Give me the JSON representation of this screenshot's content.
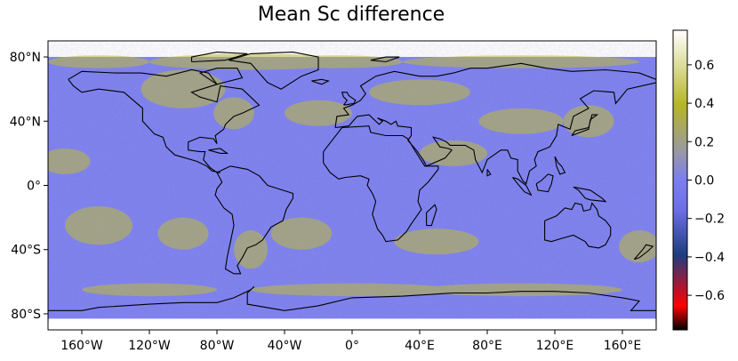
{
  "title": "Mean Sc difference",
  "map": {
    "projection": "PlateCarree",
    "lon_range": [
      -180,
      180
    ],
    "lat_range": [
      -90,
      90
    ],
    "data_lat_range": [
      -83,
      80
    ],
    "grid_lines": false,
    "x_ticks": [
      {
        "lon": -160,
        "label": "160°W"
      },
      {
        "lon": -120,
        "label": "120°W"
      },
      {
        "lon": -80,
        "label": "80°W"
      },
      {
        "lon": -40,
        "label": "40°W"
      },
      {
        "lon": 0,
        "label": "0°"
      },
      {
        "lon": 40,
        "label": "40°E"
      },
      {
        "lon": 80,
        "label": "80°E"
      },
      {
        "lon": 120,
        "label": "120°E"
      },
      {
        "lon": 160,
        "label": "160°E"
      }
    ],
    "y_ticks": [
      {
        "lat": 80,
        "label": "80°N"
      },
      {
        "lat": 40,
        "label": "40°N"
      },
      {
        "lat": 0,
        "label": "0°"
      },
      {
        "lat": -40,
        "label": "40°S"
      },
      {
        "lat": -80,
        "label": "80°S"
      }
    ]
  },
  "colorbar": {
    "vmin": -0.78,
    "vmax": 0.78,
    "ticks": [
      {
        "value": 0.6,
        "label": "0.6"
      },
      {
        "value": 0.4,
        "label": "0.4"
      },
      {
        "value": 0.2,
        "label": "0.2"
      },
      {
        "value": 0.0,
        "label": "0.0"
      },
      {
        "value": -0.2,
        "label": "−0.2"
      },
      {
        "value": -0.4,
        "label": "−0.4"
      },
      {
        "value": -0.6,
        "label": "−0.6"
      }
    ],
    "colors": [
      "#000000",
      "#ff0000",
      "#1e3c80",
      "#7a7af2",
      "#b5b526",
      "#ffffff"
    ]
  },
  "colors": {
    "base_field": "#7b7ef0",
    "positive_anomaly": "#bdbc37",
    "coastline": "#000000"
  }
}
